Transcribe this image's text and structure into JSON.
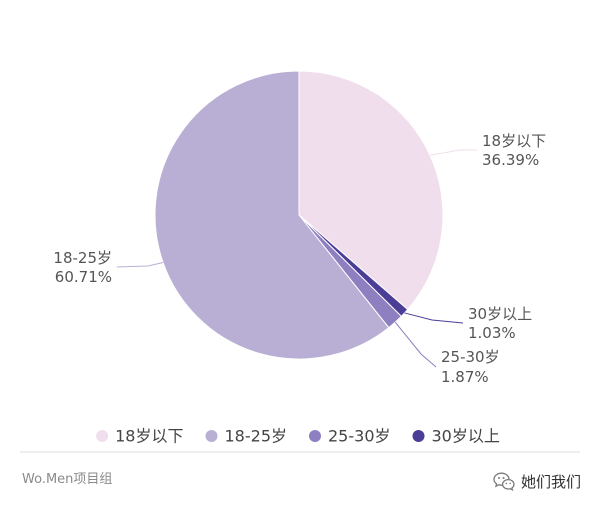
{
  "chart_data": {
    "type": "pie",
    "slices": [
      {
        "label": "18岁以下",
        "value": 36.39,
        "color": "#F0DEEC"
      },
      {
        "label": "30岁以上",
        "value": 1.03,
        "color": "#4B3E96"
      },
      {
        "label": "25-30岁",
        "value": 1.87,
        "color": "#8E80C0"
      },
      {
        "label": "18-25岁",
        "value": 60.71,
        "color": "#B9AFD4"
      }
    ],
    "value_unit": "%",
    "legend": {
      "position": "bottom",
      "items": [
        "18岁以下",
        "18-25岁",
        "25-30岁",
        "30岁以上"
      ]
    }
  },
  "footer": {
    "source": "Wo.Men项目组",
    "account": "她们我们",
    "account_icon": "wechat-icon"
  }
}
